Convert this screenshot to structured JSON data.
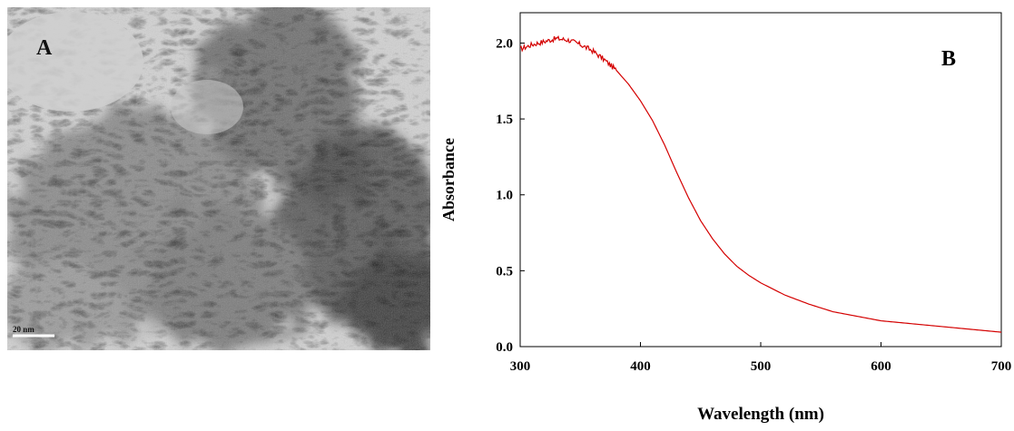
{
  "panel_a": {
    "label": "A",
    "scale_bar_label": "20 nm",
    "image_description_icon": "tem-micrograph-icon"
  },
  "chart_data": {
    "type": "line",
    "panel_label": "B",
    "title": "",
    "xlabel": "Wavelength (nm)",
    "ylabel": "Absorbance",
    "xlim": [
      300,
      700
    ],
    "ylim": [
      0,
      2.2
    ],
    "x_ticks": [
      300,
      400,
      500,
      600,
      700
    ],
    "x_tick_labels": [
      "300",
      "400",
      "500",
      "600",
      "700"
    ],
    "y_ticks": [
      0,
      0.5,
      1.0,
      1.5,
      2.0
    ],
    "y_tick_labels": [
      "0.0",
      "0.5",
      "1.0",
      "1.5",
      "2.0"
    ],
    "grid": false,
    "legend": "none",
    "series": [
      {
        "color": "#d40000",
        "x": [
          300,
          310,
          320,
          330,
          340,
          350,
          360,
          370,
          380,
          390,
          400,
          410,
          420,
          430,
          440,
          450,
          460,
          470,
          480,
          490,
          500,
          520,
          540,
          560,
          580,
          600,
          620,
          640,
          660,
          680,
          700
        ],
        "y": [
          1.96,
          1.99,
          2.01,
          2.03,
          2.02,
          1.99,
          1.95,
          1.89,
          1.82,
          1.73,
          1.62,
          1.49,
          1.33,
          1.15,
          0.98,
          0.83,
          0.71,
          0.61,
          0.53,
          0.47,
          0.42,
          0.34,
          0.28,
          0.23,
          0.2,
          0.17,
          0.155,
          0.14,
          0.125,
          0.11,
          0.095
        ]
      }
    ]
  }
}
